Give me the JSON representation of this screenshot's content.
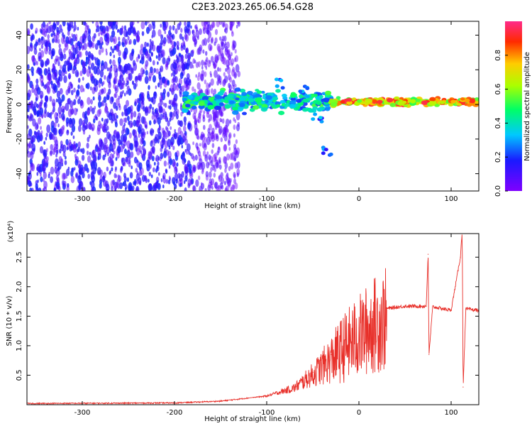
{
  "figure": {
    "title": "C2E3.2023.265.06.54.G28"
  },
  "colors": {
    "snr_line": "#e8302a",
    "axis": "#000000",
    "background": "#ffffff"
  },
  "chart_data": [
    {
      "type": "heatmap",
      "xlabel": "Height of straight line (km)",
      "ylabel": "Frequency (Hz)",
      "xlim": [
        -360,
        130
      ],
      "ylim": [
        -50,
        48
      ],
      "xticks": [
        -300,
        -200,
        -100,
        0,
        100
      ],
      "yticks": [
        -40,
        -20,
        0,
        20,
        40
      ],
      "colorscale": "rainbow (purple → blue → cyan → green → yellow → red → magenta)",
      "colorbar": {
        "label": "Normalized spectral amplitude",
        "range": [
          0.0,
          1.0
        ],
        "ticks": [
          0.0,
          0.2,
          0.4,
          0.6,
          0.8
        ]
      },
      "regions": [
        {
          "x_range": [
            -360,
            -180
          ],
          "y_range": [
            -50,
            48
          ],
          "amplitude": [
            0.05,
            0.2
          ]
        },
        {
          "x_range": [
            -180,
            -130
          ],
          "y_range": [
            -50,
            48
          ],
          "amplitude": [
            0.03,
            0.1
          ]
        },
        {
          "x_range": [
            -190,
            -30
          ],
          "y_center": 2,
          "y_spread": 6,
          "amplitude": [
            0.2,
            0.55
          ]
        },
        {
          "x_range": [
            -30,
            130
          ],
          "y_center": 1.5,
          "y_spread": 2,
          "amplitude": [
            0.5,
            0.95
          ]
        }
      ],
      "features": [
        {
          "x": -85,
          "y": 12
        },
        {
          "x": -60,
          "y": 8
        },
        {
          "x": -45,
          "y": -8
        },
        {
          "x": -35,
          "y": -27
        }
      ]
    },
    {
      "type": "line",
      "xlabel": "Height of straight line (km)",
      "ylabel": "SNR (10 * v/v)",
      "y_multiplier": "(x10⁴)",
      "xlim": [
        -360,
        130
      ],
      "ylim": [
        0,
        2.9
      ],
      "xticks": [
        -300,
        -200,
        -100,
        0,
        100
      ],
      "yticks": [
        0.5,
        1.0,
        1.5,
        2.0,
        2.5
      ],
      "key_points": [
        {
          "x": -360,
          "y": 0.02
        },
        {
          "x": -200,
          "y": 0.03
        },
        {
          "x": -150,
          "y": 0.06
        },
        {
          "x": -100,
          "y": 0.15
        },
        {
          "x": -70,
          "y": 0.3
        },
        {
          "x": -50,
          "y": 0.55
        },
        {
          "x": -30,
          "y": 0.85
        },
        {
          "x": -15,
          "y": 1.1
        },
        {
          "x": 0,
          "y": 1.3
        },
        {
          "x": 15,
          "y": 1.5
        },
        {
          "x": 30,
          "y": 1.63
        },
        {
          "x": 50,
          "y": 1.67
        },
        {
          "x": 73,
          "y": 1.67
        },
        {
          "x": 75,
          "y": 2.55
        },
        {
          "x": 76,
          "y": 0.85
        },
        {
          "x": 80,
          "y": 1.66
        },
        {
          "x": 100,
          "y": 1.6
        },
        {
          "x": 110,
          "y": 2.5
        },
        {
          "x": 112,
          "y": 2.95
        },
        {
          "x": 113,
          "y": 0.3
        },
        {
          "x": 116,
          "y": 1.62
        },
        {
          "x": 130,
          "y": 1.6
        }
      ]
    }
  ]
}
